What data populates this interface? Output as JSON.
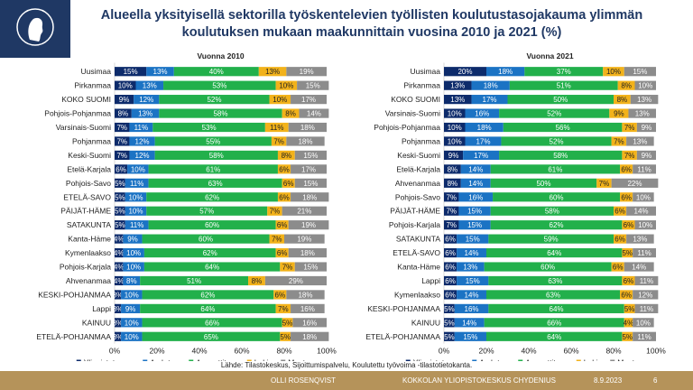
{
  "header": {
    "title_line1": "Alueella yksityisellä sektorilla työskentelevien työllisten koulutustasojakauma ylimmän",
    "title_line2": "koulutuksen mukaan maakunnittain vuosina 2010 ja 2021 (%)"
  },
  "colors": {
    "Yliopistotaso": "#0d2b6b",
    "Amk-taso": "#1b73c4",
    "Ammattitaso": "#22b04b",
    "Lukio": "#f2b21a",
    "Muut": "#8c8c8c",
    "logo_bg": "#1f3864",
    "footer_bg": "#b5935a"
  },
  "chart_data": [
    {
      "type": "bar",
      "stacked": true,
      "orientation": "horizontal",
      "title": "Vuonna 2010",
      "xlim": [
        0,
        100
      ],
      "xticks": [
        "0%",
        "20%",
        "40%",
        "60%",
        "80%",
        "100%"
      ],
      "legend_position": "bottom",
      "categories": [
        "Uusimaa",
        "Pirkanmaa",
        "KOKO SUOMI",
        "Pohjois-Pohjanmaa",
        "Varsinais-Suomi",
        "Pohjanmaa",
        "Keski-Suomi",
        "Etelä-Karjala",
        "Pohjois-Savo",
        "ETELÄ-SAVO",
        "PÄIJÄT-HÄME",
        "SATAKUNTA",
        "Kanta-Häme",
        "Kymenlaakso",
        "Pohjois-Karjala",
        "Ahvenanmaa",
        "KESKI-POHJANMAA",
        "Lappi",
        "KAINUU",
        "ETELÄ-POHJANMAA"
      ],
      "series": [
        {
          "name": "Yliopistotaso",
          "values": [
            15,
            10,
            9,
            8,
            7,
            7,
            7,
            6,
            5,
            5,
            5,
            5,
            4,
            4,
            4,
            4,
            3,
            3,
            3,
            3
          ]
        },
        {
          "name": "Amk-taso",
          "values": [
            13,
            13,
            12,
            13,
            11,
            12,
            12,
            10,
            11,
            10,
            10,
            11,
            9,
            10,
            10,
            8,
            10,
            9,
            10,
            10
          ]
        },
        {
          "name": "Ammattitaso",
          "values": [
            40,
            53,
            52,
            58,
            53,
            55,
            58,
            61,
            63,
            62,
            57,
            60,
            60,
            62,
            64,
            51,
            62,
            64,
            66,
            65
          ]
        },
        {
          "name": "Lukio",
          "values": [
            13,
            10,
            10,
            8,
            11,
            7,
            8,
            6,
            6,
            6,
            7,
            6,
            7,
            6,
            7,
            8,
            6,
            7,
            5,
            5
          ]
        },
        {
          "name": "Muut",
          "values": [
            19,
            15,
            17,
            14,
            18,
            18,
            15,
            17,
            15,
            18,
            21,
            19,
            19,
            18,
            15,
            29,
            18,
            16,
            16,
            18
          ]
        }
      ]
    },
    {
      "type": "bar",
      "stacked": true,
      "orientation": "horizontal",
      "title": "Vuonna 2021",
      "xlim": [
        0,
        100
      ],
      "xticks": [
        "0%",
        "20%",
        "40%",
        "60%",
        "80%",
        "100%"
      ],
      "legend_position": "bottom",
      "categories": [
        "Uusimaa",
        "Pirkanmaa",
        "KOKO SUOMI",
        "Varsinais-Suomi",
        "Pohjois-Pohjanmaa",
        "Pohjanmaa",
        "Keski-Suomi",
        "Etelä-Karjala",
        "Ahvenanmaa",
        "Pohjois-Savo",
        "PÄIJÄT-HÄME",
        "Pohjois-Karjala",
        "SATAKUNTA",
        "ETELÄ-SAVO",
        "Kanta-Häme",
        "Lappi",
        "Kymenlaakso",
        "KESKI-POHJANMAA",
        "KAINUU",
        "ETELÄ-POHJANMAA"
      ],
      "series": [
        {
          "name": "Yliopistotaso",
          "values": [
            20,
            13,
            13,
            10,
            10,
            10,
            9,
            8,
            8,
            7,
            7,
            7,
            6,
            6,
            6,
            6,
            6,
            5,
            5,
            5
          ]
        },
        {
          "name": "Amk-taso",
          "values": [
            18,
            18,
            17,
            16,
            18,
            17,
            17,
            14,
            14,
            16,
            15,
            15,
            15,
            14,
            13,
            15,
            14,
            16,
            14,
            15
          ]
        },
        {
          "name": "Ammattitaso",
          "values": [
            37,
            51,
            50,
            52,
            56,
            52,
            58,
            61,
            50,
            60,
            58,
            62,
            59,
            64,
            60,
            63,
            63,
            64,
            66,
            64
          ]
        },
        {
          "name": "Lukio",
          "values": [
            10,
            8,
            8,
            9,
            7,
            7,
            7,
            6,
            7,
            6,
            6,
            6,
            6,
            5,
            6,
            6,
            6,
            5,
            4,
            5
          ]
        },
        {
          "name": "Muut",
          "values": [
            15,
            10,
            13,
            13,
            9,
            13,
            9,
            11,
            22,
            10,
            14,
            10,
            13,
            11,
            14,
            11,
            12,
            11,
            10,
            11
          ]
        }
      ]
    }
  ],
  "source": "Lähde: Tilastokeskus, Sijoittumispalvelu, Koulutettu työvoima -tilastotietokanta.",
  "footer": {
    "author": "OLLI ROSENQVIST",
    "organization": "KOKKOLAN YLIOPISTOKESKUS CHYDENIUS",
    "date": "8.9.2023",
    "page": "6"
  }
}
